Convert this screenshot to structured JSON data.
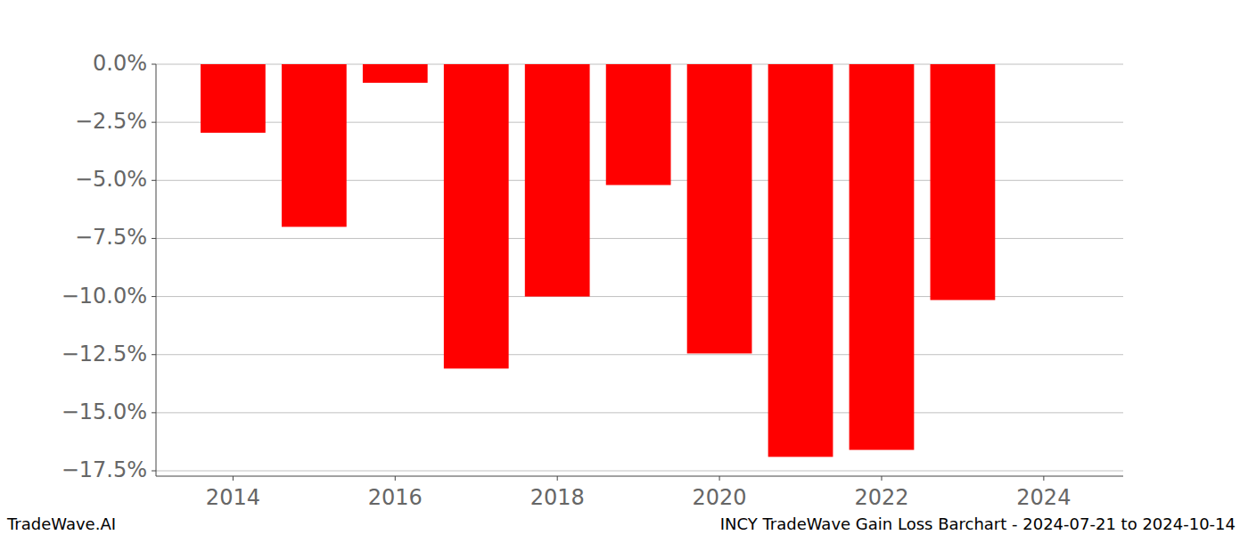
{
  "chart_data": {
    "type": "bar",
    "title": "INCY TradeWave Gain Loss Barchart - 2024-07-21 to 2024-10-14",
    "source": "TradeWave.AI",
    "x": [
      2014,
      2015,
      2016,
      2017,
      2018,
      2019,
      2020,
      2021,
      2022,
      2023
    ],
    "values": [
      -2.95,
      -7.0,
      -0.8,
      -13.1,
      -10.0,
      -5.2,
      -12.45,
      -16.9,
      -16.6,
      -10.15
    ],
    "color": "#ff0000",
    "xlim": [
      2013.05,
      2024.98
    ],
    "xticks": [
      2014,
      2016,
      2018,
      2020,
      2022,
      2024
    ],
    "ylim": [
      -17.73,
      0
    ],
    "yticks": [
      {
        "value": 0,
        "label": "0.0%"
      },
      {
        "value": -2.5,
        "label": "−2.5%"
      },
      {
        "value": -5,
        "label": "−5.0%"
      },
      {
        "value": -7.5,
        "label": "−7.5%"
      },
      {
        "value": -10,
        "label": "−10.0%"
      },
      {
        "value": -12.5,
        "label": "−12.5%"
      },
      {
        "value": -15,
        "label": "−15.0%"
      },
      {
        "value": -17.5,
        "label": "−17.5%"
      }
    ],
    "grid": true
  }
}
